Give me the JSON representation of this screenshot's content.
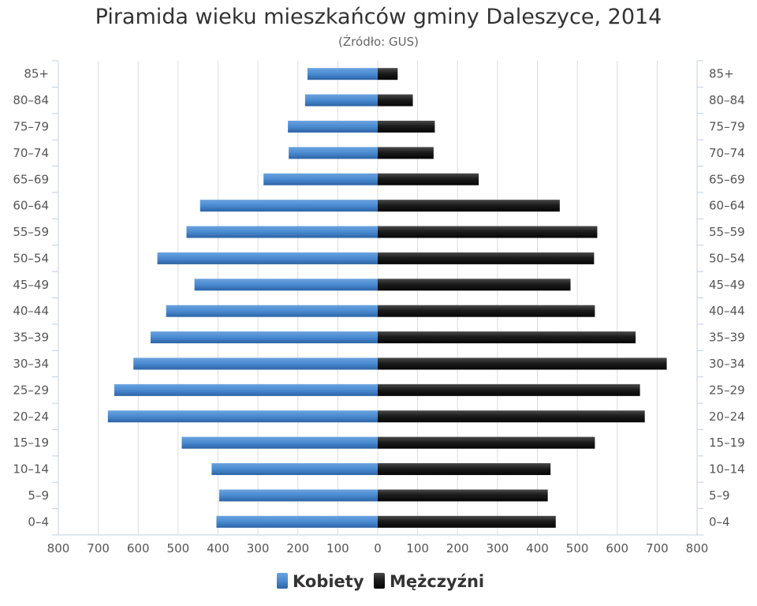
{
  "chart_data": {
    "type": "bar",
    "orientation": "horizontal-pyramid",
    "title": "Piramida wieku mieszkańców gminy Daleszyce, 2014",
    "subtitle": "(Źródło: GUS)",
    "categories": [
      "85+",
      "80–84",
      "75–79",
      "70–74",
      "65–69",
      "60–64",
      "55–59",
      "50–54",
      "45–49",
      "40–44",
      "35–39",
      "30–34",
      "25–29",
      "20–24",
      "15–19",
      "10–14",
      "5–9",
      "0–4"
    ],
    "series": [
      {
        "name": "Kobiety",
        "color": "#3f7fc4",
        "values": [
          176,
          182,
          225,
          223,
          286,
          445,
          479,
          552,
          459,
          530,
          569,
          612,
          660,
          676,
          491,
          416,
          397,
          404
        ]
      },
      {
        "name": "Mężczyźni",
        "color": "#1a1a1a",
        "values": [
          50,
          88,
          143,
          140,
          253,
          456,
          550,
          542,
          483,
          544,
          646,
          724,
          657,
          669,
          544,
          433,
          426,
          446
        ]
      }
    ],
    "x_ticks": [
      "800",
      "700",
      "600",
      "500",
      "400",
      "300",
      "200",
      "100",
      "0",
      "100",
      "200",
      "300",
      "400",
      "500",
      "600",
      "700",
      "800"
    ],
    "xlim": [
      -800,
      800
    ],
    "grid": true,
    "legend_position": "bottom"
  }
}
